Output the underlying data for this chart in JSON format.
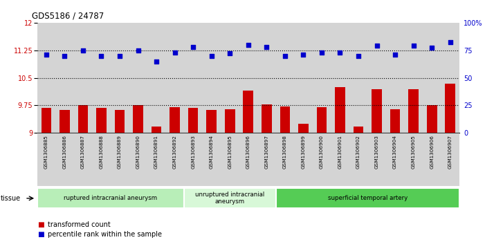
{
  "title": "GDS5186 / 24787",
  "samples": [
    "GSM1306885",
    "GSM1306886",
    "GSM1306887",
    "GSM1306888",
    "GSM1306889",
    "GSM1306890",
    "GSM1306891",
    "GSM1306892",
    "GSM1306893",
    "GSM1306894",
    "GSM1306895",
    "GSM1306896",
    "GSM1306897",
    "GSM1306898",
    "GSM1306899",
    "GSM1306900",
    "GSM1306901",
    "GSM1306902",
    "GSM1306903",
    "GSM1306904",
    "GSM1306905",
    "GSM1306906",
    "GSM1306907"
  ],
  "bar_values": [
    9.68,
    9.62,
    9.75,
    9.68,
    9.63,
    9.75,
    9.17,
    9.7,
    9.68,
    9.63,
    9.64,
    10.15,
    9.78,
    9.72,
    9.25,
    9.7,
    10.25,
    9.18,
    10.2,
    9.65,
    10.2,
    9.75,
    10.35
  ],
  "percentile_values": [
    71,
    70,
    75,
    70,
    70,
    75,
    65,
    73,
    78,
    70,
    72,
    80,
    78,
    70,
    71,
    73,
    73,
    70,
    79,
    71,
    79,
    77,
    82
  ],
  "bar_color": "#cc0000",
  "dot_color": "#0000cc",
  "ylim_left": [
    9.0,
    12.0
  ],
  "ylim_right": [
    0,
    100
  ],
  "yticks_left": [
    9.0,
    9.75,
    10.5,
    11.25,
    12.0
  ],
  "ytick_labels_left": [
    "9",
    "9.75",
    "10.5",
    "11.25",
    "12"
  ],
  "yticks_right": [
    0,
    25,
    50,
    75,
    100
  ],
  "ytick_labels_right": [
    "0",
    "25",
    "50",
    "75",
    "100%"
  ],
  "hlines": [
    9.75,
    10.5,
    11.25
  ],
  "groups": [
    {
      "label": "ruptured intracranial aneurysm",
      "start": 0,
      "end": 8,
      "color": "#b8eeb8"
    },
    {
      "label": "unruptured intracranial\naneurysm",
      "start": 8,
      "end": 13,
      "color": "#d8f8d8"
    },
    {
      "label": "superficial temporal artery",
      "start": 13,
      "end": 23,
      "color": "#55cc55"
    }
  ],
  "group_label": "tissue",
  "legend_bar_label": "transformed count",
  "legend_dot_label": "percentile rank within the sample",
  "col_bg": "#d4d4d4",
  "plot_bg": "white"
}
